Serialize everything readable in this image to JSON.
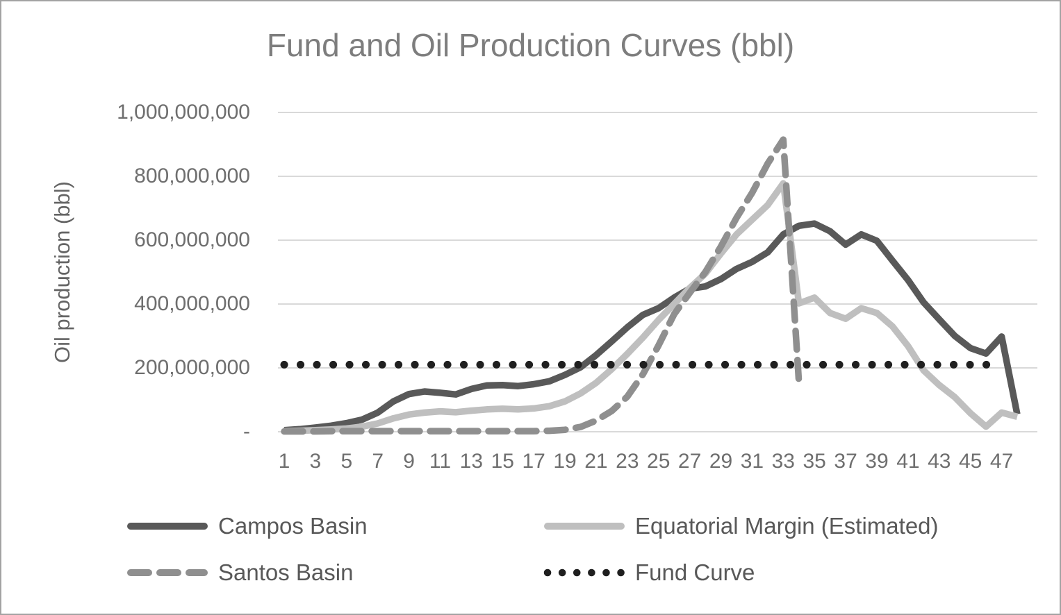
{
  "chart": {
    "title": "Fund and Oil Production Curves (bbl)",
    "y_axis_title": "Oil production (bbl)"
  },
  "colors": {
    "campos_basin": "#595959",
    "equatorial_margin": "#bfbfbf",
    "santos_basin": "#8f8f8f",
    "fund_curve": "#1f1f1f",
    "gridline": "#d9d9d9",
    "frame_border": "#a3a3a3",
    "background": "#ffffff"
  },
  "chart_data": {
    "type": "line",
    "title": "Fund and Oil Production Curves (bbl)",
    "xlabel": "",
    "ylabel": "Oil production (bbl)",
    "value_unit": "million bbl (values below are millions of barrels)",
    "ylim": [
      0,
      1000
    ],
    "grid": "horizontal",
    "legend_position": "bottom",
    "y_tick_labels": [
      "-",
      "200,000,000",
      "400,000,000",
      "600,000,000",
      "800,000,000",
      "1,000,000,000"
    ],
    "x_tick_labels": [
      1,
      3,
      5,
      7,
      9,
      11,
      13,
      15,
      17,
      19,
      21,
      23,
      25,
      27,
      29,
      31,
      33,
      35,
      37,
      39,
      41,
      43,
      45,
      47
    ],
    "x": [
      1,
      2,
      3,
      4,
      5,
      6,
      7,
      8,
      9,
      10,
      11,
      12,
      13,
      14,
      15,
      16,
      17,
      18,
      19,
      20,
      21,
      22,
      23,
      24,
      25,
      26,
      27,
      28,
      29,
      30,
      31,
      32,
      33,
      34,
      35,
      36,
      37,
      38,
      39,
      40,
      41,
      42,
      43,
      44,
      45,
      46,
      47,
      48
    ],
    "series": [
      {
        "name": "Campos Basin",
        "color": "#595959",
        "line_style": "solid",
        "values": [
          5,
          8,
          13,
          19,
          27,
          38,
          60,
          95,
          118,
          126,
          122,
          117,
          134,
          145,
          146,
          143,
          149,
          158,
          178,
          202,
          240,
          283,
          327,
          366,
          387,
          420,
          448,
          455,
          478,
          510,
          532,
          562,
          618,
          645,
          652,
          628,
          586,
          618,
          598,
          536,
          475,
          405,
          352,
          300,
          262,
          245,
          298,
          55
        ]
      },
      {
        "name": "Equatorial Margin (Estimated)",
        "color": "#bfbfbf",
        "line_style": "solid",
        "values": [
          2,
          3,
          5,
          7,
          10,
          16,
          26,
          42,
          54,
          60,
          64,
          61,
          66,
          70,
          72,
          70,
          73,
          80,
          95,
          120,
          153,
          196,
          244,
          295,
          350,
          400,
          450,
          495,
          558,
          618,
          664,
          710,
          778,
          402,
          420,
          372,
          354,
          387,
          372,
          330,
          268,
          192,
          146,
          108,
          58,
          16,
          60,
          47
        ]
      },
      {
        "name": "Santos Basin",
        "color": "#8f8f8f",
        "line_style": "dashed",
        "values": [
          1,
          1,
          1,
          2,
          2,
          2,
          2,
          2,
          2,
          2,
          2,
          2,
          2,
          2,
          2,
          2,
          2,
          3,
          6,
          15,
          35,
          65,
          110,
          180,
          270,
          368,
          435,
          500,
          580,
          670,
          748,
          840,
          915,
          155,
          null,
          null,
          null,
          null,
          null,
          null,
          null,
          null,
          null,
          null,
          null,
          null,
          null,
          null
        ]
      },
      {
        "name": "Fund Curve",
        "color": "#1f1f1f",
        "line_style": "dotted",
        "values": [
          210,
          210,
          210,
          210,
          210,
          210,
          210,
          210,
          210,
          210,
          210,
          210,
          210,
          210,
          210,
          210,
          210,
          210,
          210,
          210,
          210,
          210,
          210,
          210,
          210,
          210,
          210,
          210,
          210,
          210,
          210,
          210,
          210,
          210,
          210,
          210,
          210,
          210,
          210,
          210,
          210,
          210,
          210,
          210,
          210,
          210,
          210,
          null
        ]
      }
    ]
  }
}
